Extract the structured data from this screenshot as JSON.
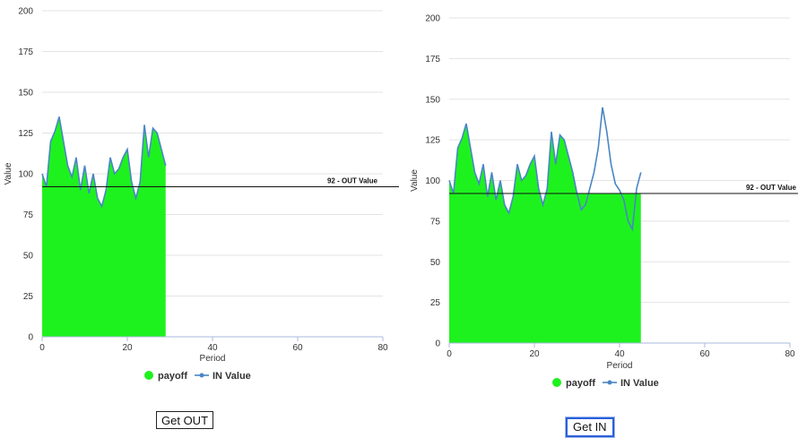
{
  "colors": {
    "area": "#1ef21e",
    "line": "#4a86c5",
    "grid": "#e3e3e3",
    "axis": "#aabbdd",
    "refline": "#111111"
  },
  "chart_data": [
    {
      "type": "area",
      "xlabel": "Period",
      "ylabel": "Value",
      "xlim": [
        0,
        80
      ],
      "ylim": [
        0,
        200
      ],
      "xticks": [
        "0",
        "20",
        "40",
        "60",
        "80"
      ],
      "yticks": [
        "0",
        "25",
        "50",
        "75",
        "100",
        "125",
        "150",
        "175",
        "200"
      ],
      "grid": true,
      "legend_position": "bottom",
      "reference_line": {
        "value": 92,
        "label": "92 - OUT Value"
      },
      "series": [
        {
          "name": "payoff",
          "type": "area",
          "x": [
            0,
            1,
            2,
            3,
            4,
            5,
            6,
            7,
            8,
            9,
            10,
            11,
            12,
            13,
            14,
            15,
            16,
            17,
            18,
            19,
            20,
            21,
            22,
            23,
            24,
            25,
            26,
            27,
            28,
            29
          ],
          "values": [
            100,
            92,
            120,
            126,
            135,
            120,
            105,
            98,
            110,
            90,
            105,
            88,
            100,
            85,
            80,
            90,
            110,
            100,
            103,
            110,
            115,
            95,
            85,
            95,
            130,
            110,
            128,
            125,
            115,
            105
          ]
        },
        {
          "name": "IN Value",
          "type": "line",
          "x": [
            0,
            1,
            2,
            3,
            4,
            5,
            6,
            7,
            8,
            9,
            10,
            11,
            12,
            13,
            14,
            15,
            16,
            17,
            18,
            19,
            20,
            21,
            22,
            23,
            24,
            25,
            26,
            27,
            28,
            29
          ],
          "values": [
            100,
            92,
            120,
            126,
            135,
            120,
            105,
            98,
            110,
            90,
            105,
            88,
            100,
            85,
            80,
            90,
            110,
            100,
            103,
            110,
            115,
            95,
            85,
            95,
            130,
            110,
            128,
            125,
            115,
            105
          ]
        }
      ]
    },
    {
      "type": "area",
      "xlabel": "Period",
      "ylabel": "Value",
      "xlim": [
        0,
        80
      ],
      "ylim": [
        0,
        200
      ],
      "xticks": [
        "0",
        "20",
        "40",
        "60",
        "80"
      ],
      "yticks": [
        "0",
        "25",
        "50",
        "75",
        "100",
        "125",
        "150",
        "175",
        "200"
      ],
      "grid": true,
      "legend_position": "bottom",
      "reference_line": {
        "value": 92,
        "label": "92 - OUT Value"
      },
      "series": [
        {
          "name": "payoff",
          "type": "area",
          "x": [
            0,
            1,
            2,
            3,
            4,
            5,
            6,
            7,
            8,
            9,
            10,
            11,
            12,
            13,
            14,
            15,
            16,
            17,
            18,
            19,
            20,
            21,
            22,
            23,
            24,
            25,
            26,
            27,
            28,
            29,
            30,
            31,
            32,
            33,
            34,
            35,
            36,
            37,
            38,
            39,
            40,
            41,
            42,
            43,
            44,
            45
          ],
          "values": [
            100,
            92,
            120,
            126,
            135,
            120,
            105,
            98,
            110,
            90,
            105,
            88,
            100,
            85,
            80,
            90,
            110,
            100,
            103,
            110,
            115,
            95,
            85,
            95,
            130,
            110,
            128,
            125,
            115,
            105,
            92,
            92,
            92,
            92,
            92,
            92,
            92,
            92,
            92,
            92,
            92,
            92,
            92,
            92,
            92,
            92
          ]
        },
        {
          "name": "IN Value",
          "type": "line",
          "x": [
            0,
            1,
            2,
            3,
            4,
            5,
            6,
            7,
            8,
            9,
            10,
            11,
            12,
            13,
            14,
            15,
            16,
            17,
            18,
            19,
            20,
            21,
            22,
            23,
            24,
            25,
            26,
            27,
            28,
            29,
            30,
            31,
            32,
            33,
            34,
            35,
            36,
            37,
            38,
            39,
            40,
            41,
            42,
            43,
            44,
            45
          ],
          "values": [
            100,
            92,
            120,
            126,
            135,
            120,
            105,
            98,
            110,
            90,
            105,
            88,
            100,
            85,
            80,
            90,
            110,
            100,
            103,
            110,
            115,
            95,
            85,
            95,
            130,
            110,
            128,
            125,
            115,
            105,
            92,
            82,
            85,
            95,
            105,
            120,
            145,
            130,
            110,
            98,
            94,
            88,
            75,
            70,
            95,
            105
          ]
        }
      ]
    }
  ],
  "buttons": {
    "get_out": "Get OUT",
    "get_in": "Get IN"
  }
}
